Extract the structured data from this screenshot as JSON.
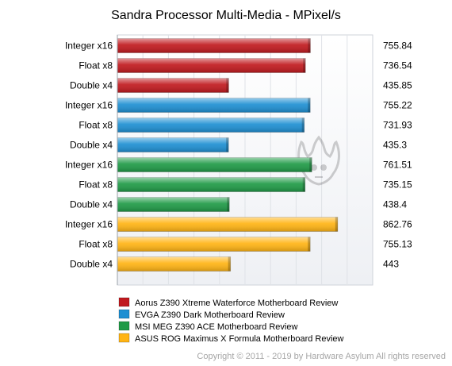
{
  "chart_data": {
    "type": "bar",
    "orientation": "horizontal",
    "title": "Sandra Processor Multi-Media - MPixel/s",
    "categories": [
      "Integer x16",
      "Float x8",
      "Double x4"
    ],
    "series": [
      {
        "name": "Aorus Z390 Xtreme Waterforce Motherboard Review",
        "color": "#c0191e",
        "values": [
          755.84,
          736.54,
          435.85
        ],
        "labels": [
          "755.84",
          "736.54",
          "435.85"
        ]
      },
      {
        "name": "EVGA Z390 Dark Motherboard Review",
        "color": "#1e8fd2",
        "values": [
          755.22,
          731.93,
          435.3
        ],
        "labels": [
          "755.22",
          "731.93",
          "435.3"
        ]
      },
      {
        "name": "MSI MEG Z390 ACE Motherboard Review",
        "color": "#1f9a46",
        "values": [
          761.51,
          735.15,
          438.4
        ],
        "labels": [
          "761.51",
          "735.15",
          "438.4"
        ]
      },
      {
        "name": "ASUS ROG Maximus X Formula Motherboard Review",
        "color": "#ffb414",
        "values": [
          862.76,
          755.13,
          443
        ],
        "labels": [
          "862.76",
          "755.13",
          "443"
        ]
      }
    ],
    "xlim": [
      0,
      1000
    ],
    "grid": true,
    "legend_position": "bottom-left"
  },
  "footer": {
    "copyright": "Copyright © 2011 - 2019 by Hardware Asylum All rights reserved"
  }
}
